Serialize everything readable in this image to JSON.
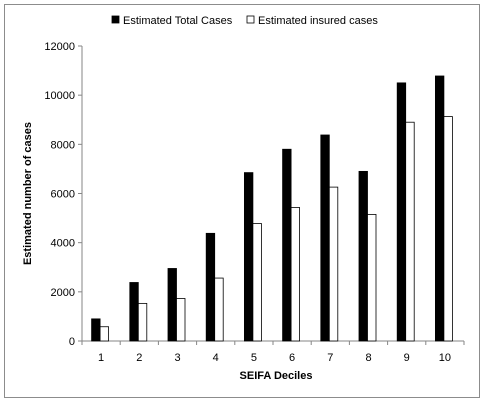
{
  "chart_data": {
    "type": "bar",
    "categories": [
      "1",
      "2",
      "3",
      "4",
      "5",
      "6",
      "7",
      "8",
      "9",
      "10"
    ],
    "series": [
      {
        "name": "Estimated Total Cases",
        "values": [
          900,
          2380,
          2950,
          4380,
          6850,
          7800,
          8380,
          6900,
          10500,
          10780
        ],
        "color": "#000000"
      },
      {
        "name": "Estimated insured cases",
        "values": [
          580,
          1530,
          1730,
          2560,
          4780,
          5430,
          6260,
          5150,
          8900,
          9130
        ],
        "color": "#ffffff"
      }
    ],
    "xlabel": "SEIFA Deciles",
    "ylabel": "Estimated number of cases",
    "ylim": [
      0,
      12000
    ],
    "yticks": [
      "0",
      "2000",
      "4000",
      "6000",
      "8000",
      "10000",
      "12000"
    ],
    "grid": false,
    "legend_position": "top"
  }
}
